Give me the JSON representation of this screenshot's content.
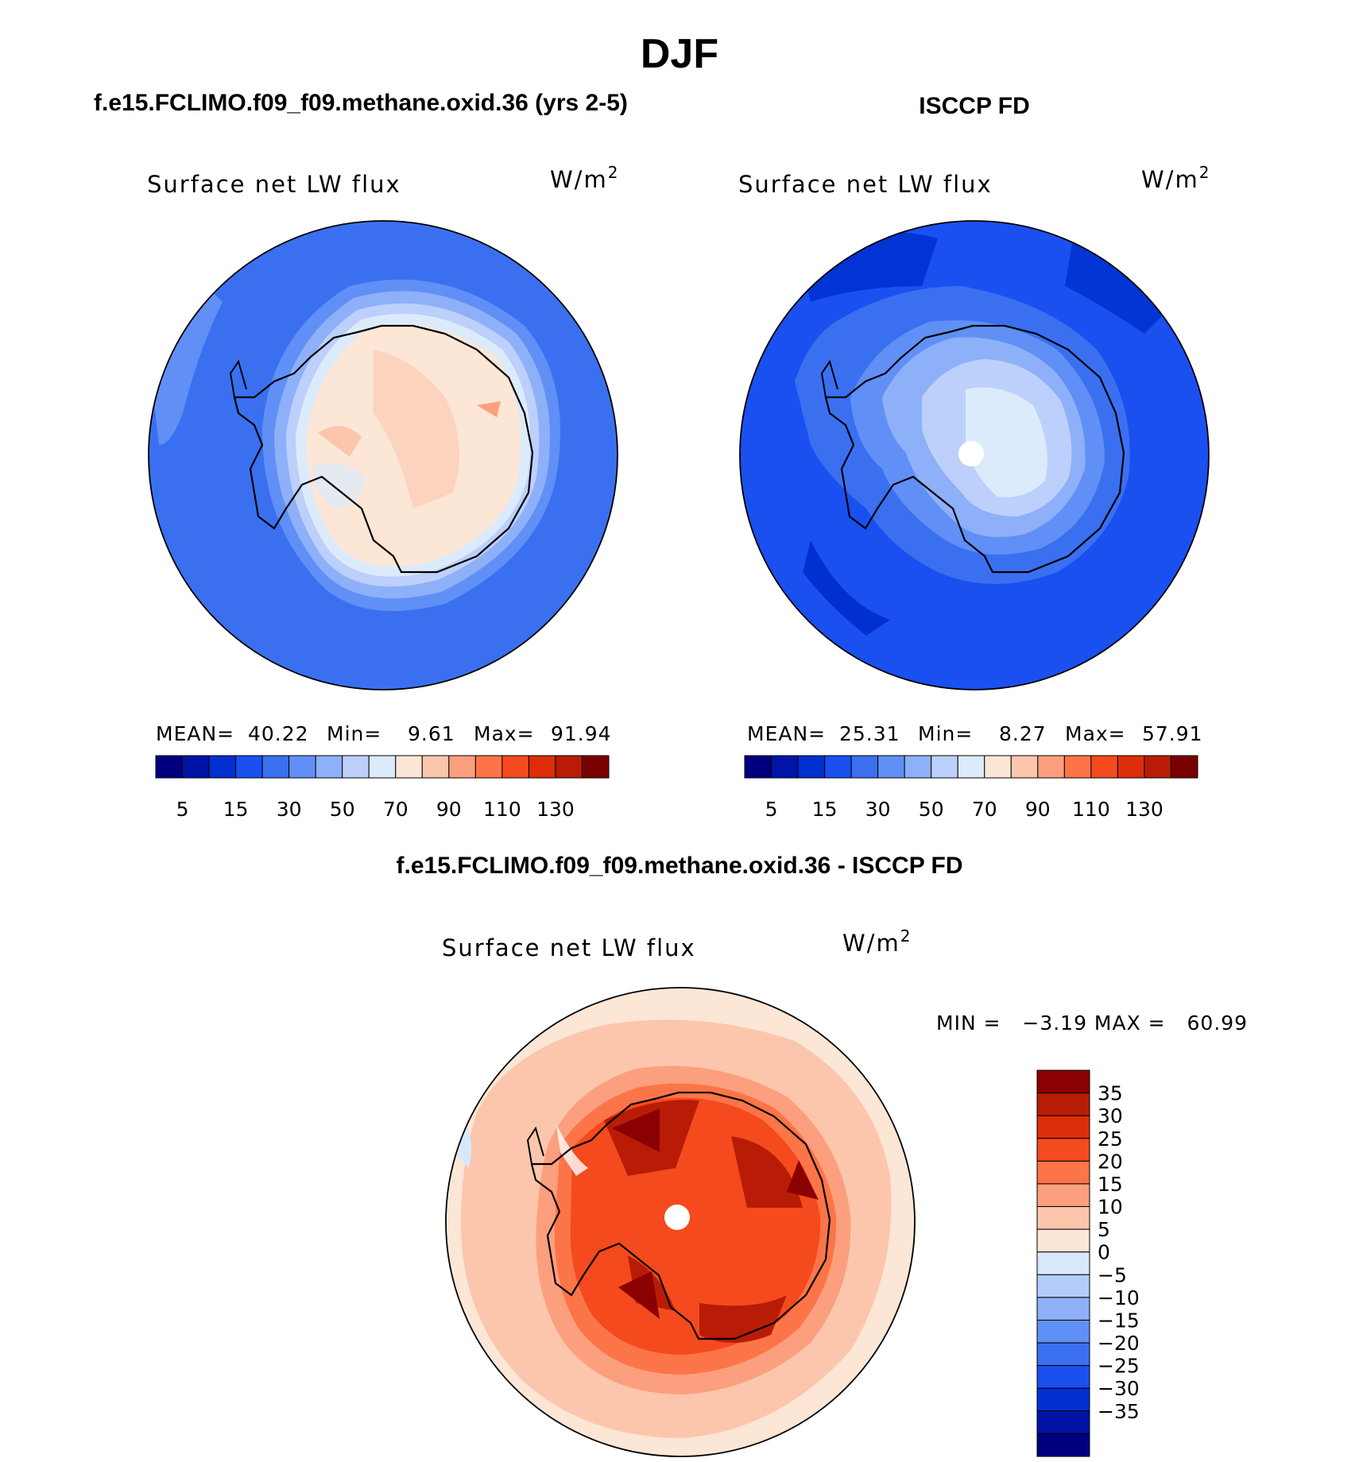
{
  "season_title": "DJF",
  "panels": [
    {
      "header": "f.e15.FCLIMO.f09_f09.methane.oxid.36 (yrs 2-5)",
      "variable": "Surface net LW flux",
      "units": "W/m",
      "units_exp": "2",
      "stats": {
        "mean_label": "MEAN=",
        "mean": "40.22",
        "min_label": "Min=",
        "min": "9.61",
        "max_label": "Max=",
        "max": "91.94"
      }
    },
    {
      "header": "ISCCP FD",
      "variable": "Surface net LW flux",
      "units": "W/m",
      "units_exp": "2",
      "stats": {
        "mean_label": "MEAN=",
        "mean": "25.31",
        "min_label": "Min=",
        "min": "8.27",
        "max_label": "Max=",
        "max": "57.91"
      }
    }
  ],
  "diff_panel": {
    "header": "f.e15.FCLIMO.f09_f09.methane.oxid.36 - ISCCP FD",
    "variable": "Surface net LW flux",
    "units": "W/m",
    "units_exp": "2",
    "minmax_text": "MIN =   −3.19 MAX =   60.99"
  },
  "abs_colorbar": {
    "colors": [
      "#00007f",
      "#0014a8",
      "#0030d0",
      "#1a50f0",
      "#3a70f0",
      "#6090f5",
      "#8eb0f8",
      "#bcd0fb",
      "#dcebfc",
      "#fce6d6",
      "#fcc6ad",
      "#fc9f7e",
      "#fc7548",
      "#f44a1e",
      "#dc2e0a",
      "#b81c06",
      "#7a0000"
    ],
    "labels": [
      "5",
      "15",
      "30",
      "50",
      "70",
      "90",
      "110",
      "130"
    ]
  },
  "diff_colorbar": {
    "colors": [
      "#8b0000",
      "#b81c06",
      "#dc2e0a",
      "#f44a1e",
      "#fc7548",
      "#fc9f7e",
      "#fcc6ad",
      "#fce6d6",
      "#d8e8fc",
      "#b4ccfa",
      "#8eb0f8",
      "#6090f5",
      "#3a70f0",
      "#1a50f0",
      "#0030d0",
      "#0014a8",
      "#00007f"
    ],
    "labels": [
      "35",
      "30",
      "25",
      "20",
      "15",
      "10",
      "5",
      "0",
      "−5",
      "−10",
      "−15",
      "−20",
      "−25",
      "−30",
      "−35"
    ]
  }
}
